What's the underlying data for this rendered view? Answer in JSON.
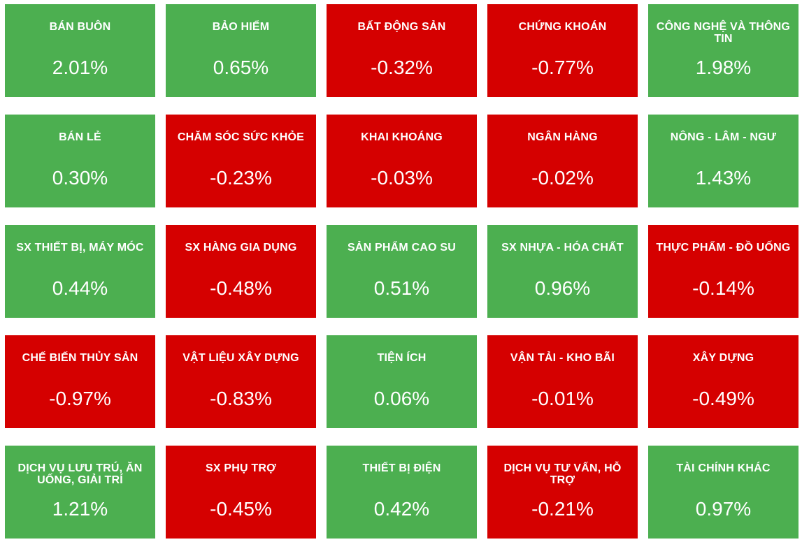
{
  "colors": {
    "up": "#4caf50",
    "down": "#d50000",
    "text": "#ffffff"
  },
  "sectors": [
    {
      "name": "BÁN BUÔN",
      "value": "2.01%",
      "direction": "up"
    },
    {
      "name": "BẢO HIỂM",
      "value": "0.65%",
      "direction": "up"
    },
    {
      "name": "BẤT ĐỘNG SẢN",
      "value": "-0.32%",
      "direction": "down"
    },
    {
      "name": "CHỨNG KHOÁN",
      "value": "-0.77%",
      "direction": "down"
    },
    {
      "name": "CÔNG NGHỆ VÀ THÔNG TIN",
      "value": "1.98%",
      "direction": "up"
    },
    {
      "name": "BÁN LẺ",
      "value": "0.30%",
      "direction": "up"
    },
    {
      "name": "CHĂM SÓC SỨC KHỎE",
      "value": "-0.23%",
      "direction": "down"
    },
    {
      "name": "KHAI KHOÁNG",
      "value": "-0.03%",
      "direction": "down"
    },
    {
      "name": "NGÂN HÀNG",
      "value": "-0.02%",
      "direction": "down"
    },
    {
      "name": "NÔNG - LÂM - NGƯ",
      "value": "1.43%",
      "direction": "up"
    },
    {
      "name": "SX THIẾT BỊ, MÁY MÓC",
      "value": "0.44%",
      "direction": "up"
    },
    {
      "name": "SX HÀNG GIA DỤNG",
      "value": "-0.48%",
      "direction": "down"
    },
    {
      "name": "SẢN PHẨM CAO SU",
      "value": "0.51%",
      "direction": "up"
    },
    {
      "name": "SX NHỰA - HÓA CHẤT",
      "value": "0.96%",
      "direction": "up"
    },
    {
      "name": "THỰC PHẨM - ĐỒ UỐNG",
      "value": "-0.14%",
      "direction": "down"
    },
    {
      "name": "CHẾ BIẾN THỦY SẢN",
      "value": "-0.97%",
      "direction": "down"
    },
    {
      "name": "VẬT LIỆU XÂY DỰNG",
      "value": "-0.83%",
      "direction": "down"
    },
    {
      "name": "TIỆN ÍCH",
      "value": "0.06%",
      "direction": "up"
    },
    {
      "name": "VẬN TẢI - KHO BÃI",
      "value": "-0.01%",
      "direction": "down"
    },
    {
      "name": "XÂY DỰNG",
      "value": "-0.49%",
      "direction": "down"
    },
    {
      "name": "DỊCH VỤ LƯU TRÚ, ĂN UỐNG, GIẢI TRÍ",
      "value": "1.21%",
      "direction": "up"
    },
    {
      "name": "SX PHỤ TRỢ",
      "value": "-0.45%",
      "direction": "down"
    },
    {
      "name": "THIẾT BỊ ĐIỆN",
      "value": "0.42%",
      "direction": "up"
    },
    {
      "name": "DỊCH VỤ TƯ VẤN, HỖ TRỢ",
      "value": "-0.21%",
      "direction": "down"
    },
    {
      "name": "TÀI CHÍNH KHÁC",
      "value": "0.97%",
      "direction": "up"
    }
  ]
}
